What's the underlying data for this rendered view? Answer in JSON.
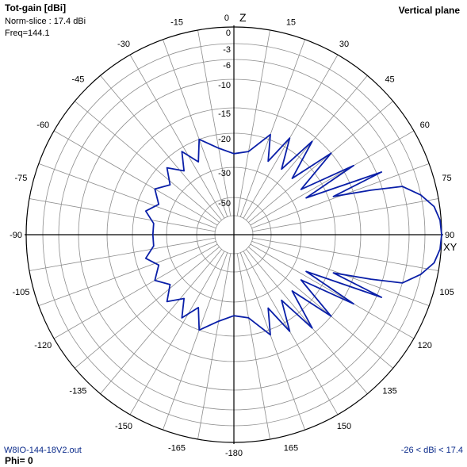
{
  "header": {
    "title": "Tot-gain [dBi]",
    "norm_slice": "Norm-slice : 17.4 dBi",
    "freq": "Freq=144.1",
    "plane": "Vertical plane"
  },
  "footer": {
    "filename": "W8IO-144-18V2.out",
    "phi": "Phi= 0",
    "range": "-26 < dBi < 17.4"
  },
  "chart_data": {
    "type": "polar",
    "axis_labels": {
      "top": "Z",
      "right": "XY"
    },
    "angle_ticks": [
      "0",
      "15",
      "30",
      "45",
      "60",
      "75",
      "90",
      "105",
      "120",
      "135",
      "150",
      "165",
      "-180",
      "-165",
      "-150",
      "-135",
      "-120",
      "-105",
      "-90",
      "-75",
      "-60",
      "-45",
      "-30",
      "-15"
    ],
    "angle_tick_values": [
      0,
      15,
      30,
      45,
      60,
      75,
      90,
      105,
      120,
      135,
      150,
      165,
      180,
      195,
      210,
      225,
      240,
      255,
      270,
      285,
      300,
      315,
      330,
      345
    ],
    "rings_db": [
      0,
      -3,
      -6,
      -10,
      -15,
      -20,
      -30,
      -50
    ],
    "ring_labels": [
      "0",
      "-3",
      "-6",
      "-10",
      "-15",
      "-20",
      "-30",
      "-50"
    ],
    "spokes_deg": 10,
    "colors": {
      "pattern": "#0a1fa8",
      "grid": "#8c8c8c",
      "axis": "#000000"
    },
    "series": [
      {
        "points_deg_db": [
          [
            0,
            -26
          ],
          [
            10,
            -25
          ],
          [
            20,
            -19
          ],
          [
            25,
            -26
          ],
          [
            30,
            -18
          ],
          [
            36,
            -26
          ],
          [
            40,
            -16
          ],
          [
            46,
            -26
          ],
          [
            50,
            -15
          ],
          [
            56,
            -26
          ],
          [
            60,
            -13
          ],
          [
            63,
            -26
          ],
          [
            67,
            -9
          ],
          [
            69,
            -19
          ],
          [
            72,
            -12
          ],
          [
            74,
            -6
          ],
          [
            78,
            -3
          ],
          [
            82,
            -1
          ],
          [
            86,
            -0.2
          ],
          [
            90,
            0
          ],
          [
            94,
            -0.2
          ],
          [
            98,
            -1
          ],
          [
            102,
            -3
          ],
          [
            106,
            -6
          ],
          [
            108,
            -12
          ],
          [
            111,
            -19
          ],
          [
            113,
            -9
          ],
          [
            117,
            -26
          ],
          [
            120,
            -13
          ],
          [
            124,
            -26
          ],
          [
            130,
            -15
          ],
          [
            134,
            -26
          ],
          [
            140,
            -16
          ],
          [
            144,
            -26
          ],
          [
            150,
            -18
          ],
          [
            155,
            -26
          ],
          [
            160,
            -19
          ],
          [
            170,
            -25
          ],
          [
            180,
            -26
          ],
          [
            190,
            -24
          ],
          [
            200,
            -20
          ],
          [
            206,
            -26
          ],
          [
            212,
            -21
          ],
          [
            218,
            -26
          ],
          [
            225,
            -22
          ],
          [
            232,
            -26
          ],
          [
            240,
            -23
          ],
          [
            248,
            -26
          ],
          [
            255,
            -23
          ],
          [
            262,
            -26
          ],
          [
            270,
            -26
          ],
          [
            278,
            -26
          ],
          [
            285,
            -23
          ],
          [
            292,
            -26
          ],
          [
            300,
            -23
          ],
          [
            308,
            -26
          ],
          [
            315,
            -22
          ],
          [
            322,
            -26
          ],
          [
            328,
            -21
          ],
          [
            334,
            -26
          ],
          [
            340,
            -20
          ],
          [
            350,
            -24
          ],
          [
            360,
            -26
          ]
        ]
      }
    ]
  }
}
